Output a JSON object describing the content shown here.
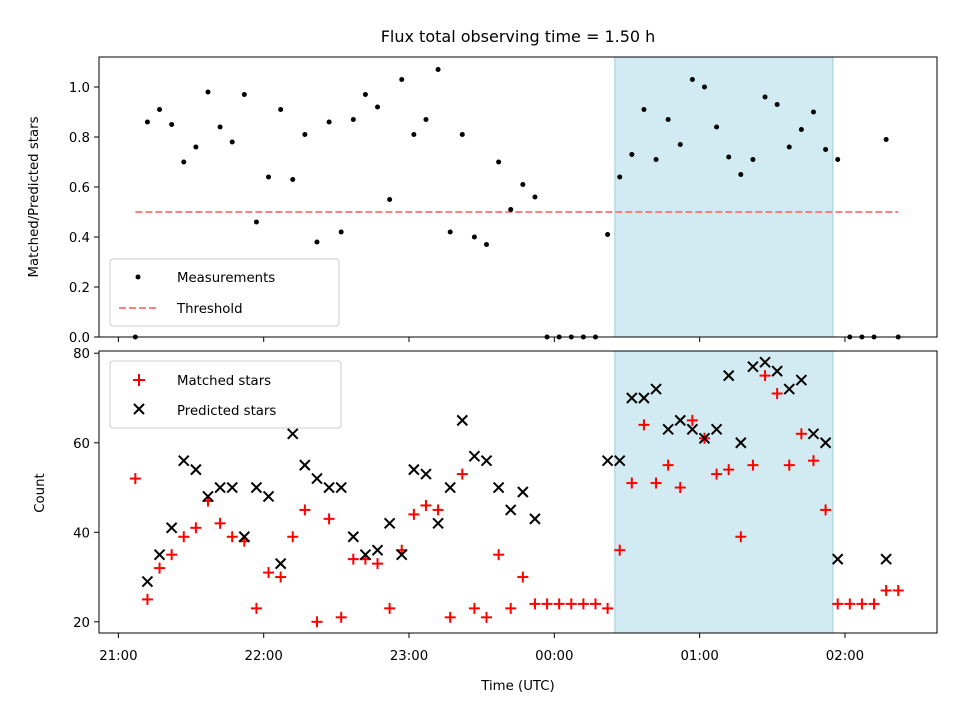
{
  "chart_data": [
    {
      "type": "scatter",
      "title": "Flux total observing time = 1.50 h",
      "xlabel": "",
      "ylabel": "Matched/Predicted stars",
      "ylim": [
        0,
        1.12
      ],
      "yticks": [
        "0.0",
        "0.2",
        "0.4",
        "0.6",
        "0.8",
        "1.0"
      ],
      "grid": false,
      "legend_position": "lower-left",
      "shaded_interval": {
        "from": "00:25",
        "to": "01:55",
        "color": "#add8e6"
      },
      "series": [
        {
          "name": "Measurements",
          "marker": "dot",
          "color": "#000000",
          "points": [
            [
              "21:07",
              0.0
            ],
            [
              "21:12",
              0.86
            ],
            [
              "21:17",
              0.91
            ],
            [
              "21:22",
              0.85
            ],
            [
              "21:27",
              0.7
            ],
            [
              "21:32",
              0.76
            ],
            [
              "21:37",
              0.98
            ],
            [
              "21:42",
              0.84
            ],
            [
              "21:47",
              0.78
            ],
            [
              "21:52",
              0.97
            ],
            [
              "21:57",
              0.46
            ],
            [
              "22:02",
              0.64
            ],
            [
              "22:07",
              0.91
            ],
            [
              "22:12",
              0.63
            ],
            [
              "22:17",
              0.81
            ],
            [
              "22:22",
              0.38
            ],
            [
              "22:27",
              0.86
            ],
            [
              "22:32",
              0.42
            ],
            [
              "22:37",
              0.87
            ],
            [
              "22:42",
              0.97
            ],
            [
              "22:47",
              0.92
            ],
            [
              "22:52",
              0.55
            ],
            [
              "22:57",
              1.03
            ],
            [
              "23:02",
              0.81
            ],
            [
              "23:07",
              0.87
            ],
            [
              "23:12",
              1.07
            ],
            [
              "23:17",
              0.42
            ],
            [
              "23:22",
              0.81
            ],
            [
              "23:27",
              0.4
            ],
            [
              "23:32",
              0.37
            ],
            [
              "23:37",
              0.7
            ],
            [
              "23:42",
              0.51
            ],
            [
              "23:47",
              0.61
            ],
            [
              "23:52",
              0.56
            ],
            [
              "23:57",
              0.0
            ],
            [
              "00:02",
              0.0
            ],
            [
              "00:07",
              0.0
            ],
            [
              "00:12",
              0.0
            ],
            [
              "00:17",
              0.0
            ],
            [
              "00:22",
              0.41
            ],
            [
              "00:27",
              0.64
            ],
            [
              "00:32",
              0.73
            ],
            [
              "00:37",
              0.91
            ],
            [
              "00:42",
              0.71
            ],
            [
              "00:47",
              0.87
            ],
            [
              "00:52",
              0.77
            ],
            [
              "00:57",
              1.03
            ],
            [
              "01:02",
              1.0
            ],
            [
              "01:07",
              0.84
            ],
            [
              "01:12",
              0.72
            ],
            [
              "01:17",
              0.65
            ],
            [
              "01:22",
              0.71
            ],
            [
              "01:27",
              0.96
            ],
            [
              "01:32",
              0.93
            ],
            [
              "01:37",
              0.76
            ],
            [
              "01:42",
              0.83
            ],
            [
              "01:47",
              0.9
            ],
            [
              "01:52",
              0.75
            ],
            [
              "01:57",
              0.71
            ],
            [
              "02:02",
              0.0
            ],
            [
              "02:07",
              0.0
            ],
            [
              "02:12",
              0.0
            ],
            [
              "02:17",
              0.79
            ],
            [
              "02:22",
              0.0
            ]
          ]
        },
        {
          "name": "Threshold",
          "style": "dashed-line",
          "color": "#ff7f7f",
          "x": [
            "21:07",
            "02:22"
          ],
          "y": 0.5
        }
      ]
    },
    {
      "type": "scatter",
      "title": "",
      "xlabel": "Time (UTC)",
      "ylabel": "Count",
      "ylim": [
        17.5,
        80.5
      ],
      "yticks": [
        "20",
        "40",
        "60",
        "80"
      ],
      "xlim": [
        "20:52",
        "02:38"
      ],
      "xticks": [
        "21:00",
        "22:00",
        "23:00",
        "00:00",
        "01:00",
        "02:00"
      ],
      "grid": false,
      "legend_position": "upper-left",
      "shaded_interval": {
        "from": "00:25",
        "to": "01:55",
        "color": "#add8e6"
      },
      "series": [
        {
          "name": "Matched stars",
          "marker": "plus",
          "color": "#ff0000",
          "points": [
            [
              "21:07",
              52
            ],
            [
              "21:12",
              25
            ],
            [
              "21:17",
              32
            ],
            [
              "21:22",
              35
            ],
            [
              "21:27",
              39
            ],
            [
              "21:32",
              41
            ],
            [
              "21:37",
              47
            ],
            [
              "21:42",
              42
            ],
            [
              "21:47",
              39
            ],
            [
              "21:52",
              38
            ],
            [
              "21:57",
              23
            ],
            [
              "22:02",
              31
            ],
            [
              "22:07",
              30
            ],
            [
              "22:12",
              39
            ],
            [
              "22:17",
              45
            ],
            [
              "22:22",
              20
            ],
            [
              "22:27",
              43
            ],
            [
              "22:32",
              21
            ],
            [
              "22:37",
              34
            ],
            [
              "22:42",
              34
            ],
            [
              "22:47",
              33
            ],
            [
              "22:52",
              23
            ],
            [
              "22:57",
              36
            ],
            [
              "23:02",
              44
            ],
            [
              "23:07",
              46
            ],
            [
              "23:12",
              45
            ],
            [
              "23:17",
              21
            ],
            [
              "23:22",
              53
            ],
            [
              "23:27",
              23
            ],
            [
              "23:32",
              21
            ],
            [
              "23:37",
              35
            ],
            [
              "23:42",
              23
            ],
            [
              "23:47",
              30
            ],
            [
              "23:52",
              24
            ],
            [
              "23:57",
              24
            ],
            [
              "00:02",
              24
            ],
            [
              "00:07",
              24
            ],
            [
              "00:12",
              24
            ],
            [
              "00:17",
              24
            ],
            [
              "00:22",
              23
            ],
            [
              "00:27",
              36
            ],
            [
              "00:32",
              51
            ],
            [
              "00:37",
              64
            ],
            [
              "00:42",
              51
            ],
            [
              "00:47",
              55
            ],
            [
              "00:52",
              50
            ],
            [
              "00:57",
              65
            ],
            [
              "01:02",
              61
            ],
            [
              "01:07",
              53
            ],
            [
              "01:12",
              54
            ],
            [
              "01:17",
              39
            ],
            [
              "01:22",
              55
            ],
            [
              "01:27",
              75
            ],
            [
              "01:32",
              71
            ],
            [
              "01:37",
              55
            ],
            [
              "01:42",
              62
            ],
            [
              "01:47",
              56
            ],
            [
              "01:52",
              45
            ],
            [
              "01:57",
              24
            ],
            [
              "02:02",
              24
            ],
            [
              "02:07",
              24
            ],
            [
              "02:12",
              24
            ],
            [
              "02:17",
              27
            ],
            [
              "02:22",
              27
            ]
          ]
        },
        {
          "name": "Predicted stars",
          "marker": "x",
          "color": "#000000",
          "points": [
            [
              "21:12",
              29
            ],
            [
              "21:17",
              35
            ],
            [
              "21:22",
              41
            ],
            [
              "21:27",
              56
            ],
            [
              "21:32",
              54
            ],
            [
              "21:37",
              48
            ],
            [
              "21:42",
              50
            ],
            [
              "21:47",
              50
            ],
            [
              "21:52",
              39
            ],
            [
              "21:57",
              50
            ],
            [
              "22:02",
              48
            ],
            [
              "22:07",
              33
            ],
            [
              "22:12",
              62
            ],
            [
              "22:17",
              55
            ],
            [
              "22:22",
              52
            ],
            [
              "22:27",
              50
            ],
            [
              "22:32",
              50
            ],
            [
              "22:37",
              39
            ],
            [
              "22:42",
              35
            ],
            [
              "22:47",
              36
            ],
            [
              "22:52",
              42
            ],
            [
              "22:57",
              35
            ],
            [
              "23:02",
              54
            ],
            [
              "23:07",
              53
            ],
            [
              "23:12",
              42
            ],
            [
              "23:17",
              50
            ],
            [
              "23:22",
              65
            ],
            [
              "23:27",
              57
            ],
            [
              "23:32",
              56
            ],
            [
              "23:37",
              50
            ],
            [
              "23:42",
              45
            ],
            [
              "23:47",
              49
            ],
            [
              "23:52",
              43
            ],
            [
              "00:22",
              56
            ],
            [
              "00:27",
              56
            ],
            [
              "00:32",
              70
            ],
            [
              "00:37",
              70
            ],
            [
              "00:42",
              72
            ],
            [
              "00:47",
              63
            ],
            [
              "00:52",
              65
            ],
            [
              "00:57",
              63
            ],
            [
              "01:02",
              61
            ],
            [
              "01:07",
              63
            ],
            [
              "01:12",
              75
            ],
            [
              "01:17",
              60
            ],
            [
              "01:22",
              77
            ],
            [
              "01:27",
              78
            ],
            [
              "01:32",
              76
            ],
            [
              "01:37",
              72
            ],
            [
              "01:42",
              74
            ],
            [
              "01:47",
              62
            ],
            [
              "01:52",
              60
            ],
            [
              "01:57",
              34
            ],
            [
              "02:17",
              34
            ]
          ]
        }
      ]
    }
  ]
}
